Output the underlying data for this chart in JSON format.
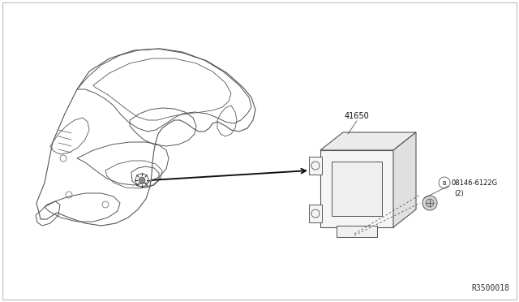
{
  "background_color": "#ffffff",
  "border_color": "#cccccc",
  "fig_width": 6.4,
  "fig_height": 3.72,
  "dpi": 100,
  "part_number_label": "41650",
  "bolt_label": "08146-6122G",
  "bolt_label_2": "(2)",
  "diagram_id": "R3500018",
  "line_color": "#555555",
  "line_width": 0.7
}
